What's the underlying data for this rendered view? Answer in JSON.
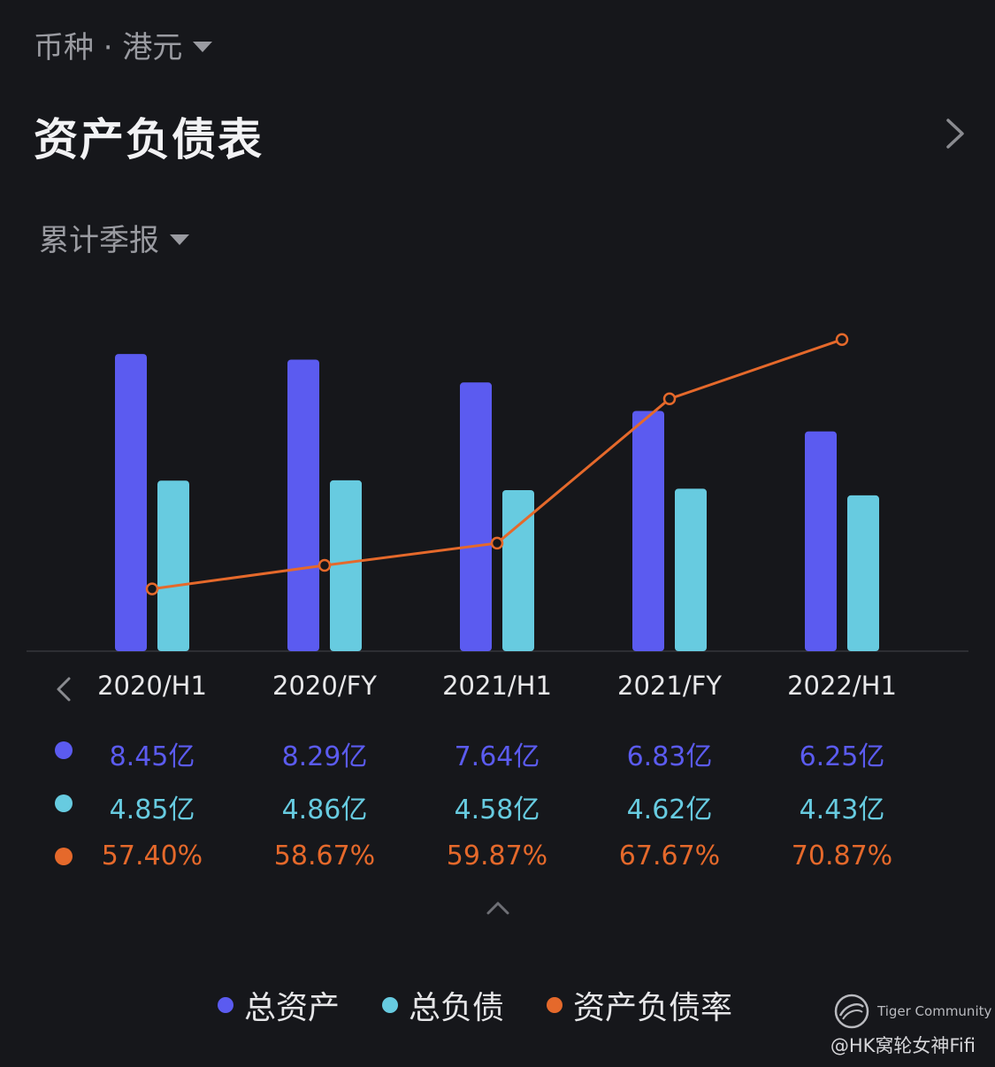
{
  "header": {
    "currency_label": "币种 · 港元",
    "title": "资产负债表",
    "period_selector": "累计季报"
  },
  "colors": {
    "total_assets": "#5b5bf0",
    "total_liabilities": "#67cbe0",
    "debt_ratio": "#e5692b",
    "background": "#16171b"
  },
  "chart_data": {
    "type": "bar",
    "categories": [
      "2020/H1",
      "2020/FY",
      "2021/H1",
      "2021/FY",
      "2022/H1"
    ],
    "series": [
      {
        "name": "总资产",
        "type": "bar",
        "values": [
          8.45,
          8.29,
          7.64,
          6.83,
          6.25
        ],
        "labels": [
          "8.45亿",
          "8.29亿",
          "7.64亿",
          "6.83亿",
          "6.25亿"
        ]
      },
      {
        "name": "总负债",
        "type": "bar",
        "values": [
          4.85,
          4.86,
          4.58,
          4.62,
          4.43
        ],
        "labels": [
          "4.85亿",
          "4.86亿",
          "4.58亿",
          "4.62亿",
          "4.43亿"
        ]
      },
      {
        "name": "资产负债率",
        "type": "line",
        "values": [
          57.4,
          58.67,
          59.87,
          67.67,
          70.87
        ],
        "labels": [
          "57.40%",
          "58.67%",
          "59.87%",
          "67.67%",
          "70.87%"
        ]
      }
    ],
    "unit_bars": "亿港元",
    "unit_line": "%",
    "grid": false,
    "legend_position": "bottom"
  },
  "legend": [
    "总资产",
    "总负债",
    "资产负债率"
  ],
  "watermark": {
    "brand": "Tiger Community",
    "handle": "@HK窝轮女神Fifi"
  },
  "icons": {
    "currency_dropdown": "caret-down-icon",
    "title_link": "chevron-right-icon",
    "period_dropdown": "caret-down-icon",
    "scroll_prev": "chevron-left-icon",
    "collapse": "chevron-up-icon"
  }
}
